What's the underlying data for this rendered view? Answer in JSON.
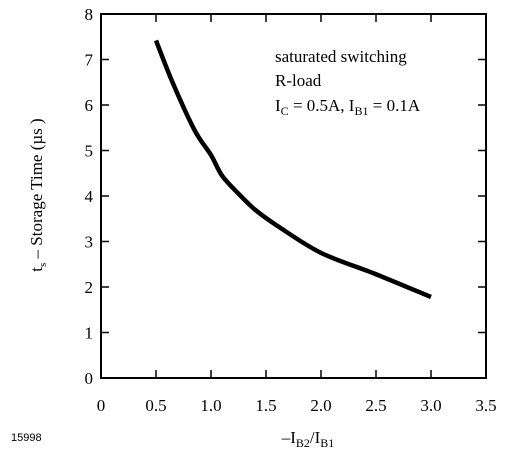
{
  "figure_id": "15998",
  "chart_data": {
    "type": "line",
    "xlabel": {
      "prefix": "–I",
      "sub1": "B2",
      "mid": "/I",
      "sub2": "B1"
    },
    "ylabel": {
      "pre": "t",
      "sub": "s",
      "post": " – Storage Time (µs )"
    },
    "xlim": [
      0,
      3.5
    ],
    "ylim": [
      0,
      8
    ],
    "xticks": [
      0,
      0.5,
      1.0,
      1.5,
      2.0,
      2.5,
      3.0,
      3.5
    ],
    "xtick_labels": [
      "0",
      "0.5",
      "1.0",
      "1.5",
      "2.0",
      "2.5",
      "3.0",
      "3.5"
    ],
    "yticks": [
      0,
      1,
      2,
      3,
      4,
      5,
      6,
      7,
      8
    ],
    "ytick_labels": [
      "0",
      "1",
      "2",
      "3",
      "4",
      "5",
      "6",
      "7",
      "8"
    ],
    "grid": false,
    "annotations": {
      "line1": "saturated switching",
      "line2": "R-load",
      "line3": {
        "a": "I",
        "a_sub": "C",
        "b": " = 0.5A, I",
        "b_sub": "B1",
        "c": " = 0.1A"
      }
    },
    "series": [
      {
        "color": "#000000",
        "x": [
          0.5,
          0.65,
          0.85,
          1.0,
          1.1,
          1.25,
          1.4,
          1.6,
          2.0,
          2.5,
          3.0
        ],
        "y": [
          7.42,
          6.5,
          5.45,
          4.9,
          4.45,
          4.05,
          3.7,
          3.35,
          2.75,
          2.28,
          1.78
        ]
      }
    ]
  }
}
